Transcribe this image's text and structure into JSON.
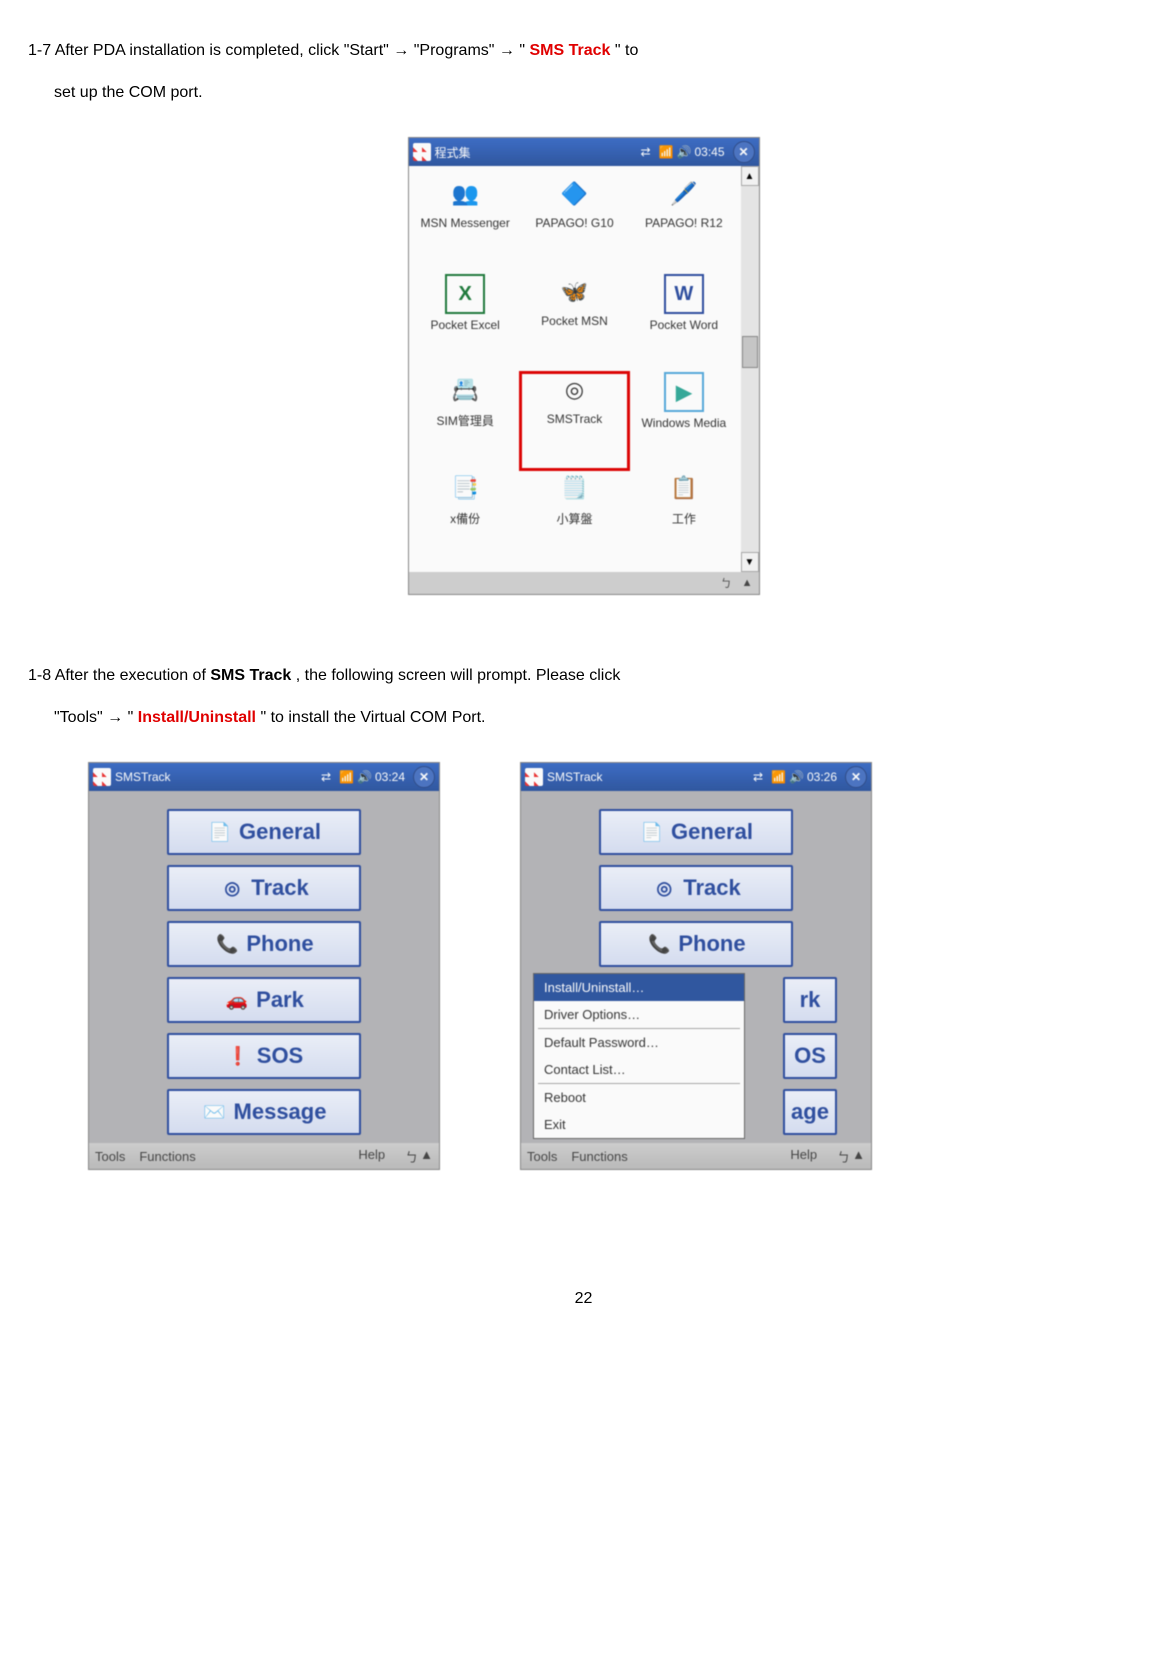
{
  "step1": {
    "prefix": "1-7 After PDA installation is completed, click \"Start\" ",
    "arrow": "→",
    "mid1": " \"Programs\" ",
    "mid2": " \"",
    "smstrack": "SMS Track",
    "suffix": "\" to",
    "line2": "set up the COM port."
  },
  "step2": {
    "prefix": "1-8 After the execution of ",
    "bold": "SMS Track",
    "mid": ", the following screen will prompt. Please click",
    "line2a": "\"Tools\" ",
    "line2b": " \"",
    "install": "Install/Uninstall",
    "line2c": "\" to install the Virtual COM Port."
  },
  "programs": {
    "title": "程式集",
    "time": "03:45",
    "apps": [
      {
        "label": "MSN Messenger",
        "icon": "👥"
      },
      {
        "label": "PAPAGO! G10",
        "icon": "🔷"
      },
      {
        "label": "PAPAGO! R12",
        "icon": "🖊️"
      },
      {
        "label": "Pocket Excel",
        "icon": "X",
        "iconColor": "#1c7a3a",
        "border": "#1c7a3a"
      },
      {
        "label": "Pocket MSN",
        "icon": "🦋"
      },
      {
        "label": "Pocket Word",
        "icon": "W",
        "iconColor": "#2c4da0",
        "border": "#2c4da0"
      },
      {
        "label": "SIM管理員",
        "icon": "📇"
      },
      {
        "label": "SMSTrack",
        "icon": "◎",
        "highlight": true
      },
      {
        "label": "Windows Media",
        "icon": "▶",
        "iconColor": "#3a9",
        "border": "#5ad"
      },
      {
        "label": "x備份",
        "icon": "📑"
      },
      {
        "label": "小算盤",
        "icon": "🗒️"
      },
      {
        "label": "工作",
        "icon": "📋"
      }
    ]
  },
  "sms": {
    "title": "SMSTrack",
    "time1": "03:24",
    "time2": "03:26",
    "buttons": [
      {
        "label": "General",
        "icon": "📄"
      },
      {
        "label": "Track",
        "icon": "◎"
      },
      {
        "label": "Phone",
        "icon": "📞"
      },
      {
        "label": "Park",
        "icon": "🚗"
      },
      {
        "label": "SOS",
        "icon": "❗"
      },
      {
        "label": "Message",
        "icon": "✉️"
      }
    ],
    "partials": [
      "rk",
      "OS",
      "age"
    ],
    "menu": {
      "tools": "Tools",
      "functions": "Functions",
      "help": "Help"
    },
    "popup": [
      {
        "label": "Install/Uninstall…",
        "sel": true
      },
      {
        "label": "Driver Options…"
      },
      {
        "sep": true
      },
      {
        "label": "Default Password…"
      },
      {
        "label": "Contact List…"
      },
      {
        "sep": true
      },
      {
        "label": "Reboot"
      },
      {
        "label": "Exit"
      }
    ]
  },
  "pageNumber": "22",
  "colors": {
    "accent": "#e00000",
    "btn": "#2c4da0",
    "bar": "#3a6cc7"
  }
}
